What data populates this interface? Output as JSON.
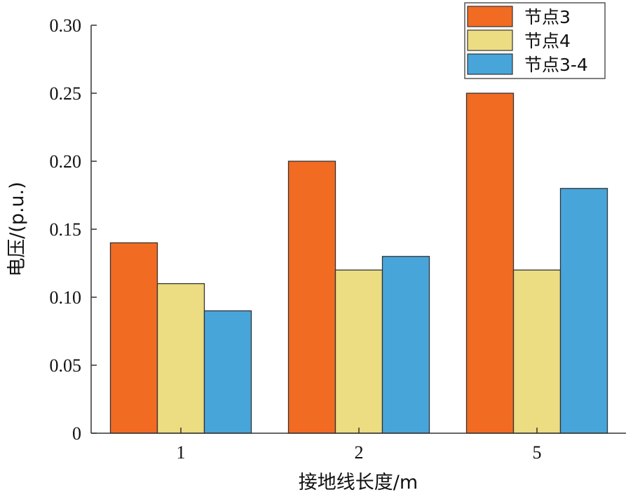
{
  "chart_data": {
    "type": "bar",
    "categories": [
      "1",
      "2",
      "5"
    ],
    "series": [
      {
        "name": "节点3",
        "values": [
          0.14,
          0.2,
          0.25
        ],
        "color": "#f26b22"
      },
      {
        "name": "节点4",
        "values": [
          0.11,
          0.12,
          0.12
        ],
        "color": "#ecdc82"
      },
      {
        "name": "节点3-4",
        "values": [
          0.09,
          0.13,
          0.18
        ],
        "color": "#47a5da"
      }
    ],
    "xlabel": "接地线长度/m",
    "ylabel": "电压/(p.u.)",
    "ylim": [
      0,
      0.3
    ],
    "yticks": [
      "0",
      "0.05",
      "0.10",
      "0.15",
      "0.20",
      "0.25",
      "0.30"
    ],
    "grid": false,
    "legend_position": "top-right"
  }
}
